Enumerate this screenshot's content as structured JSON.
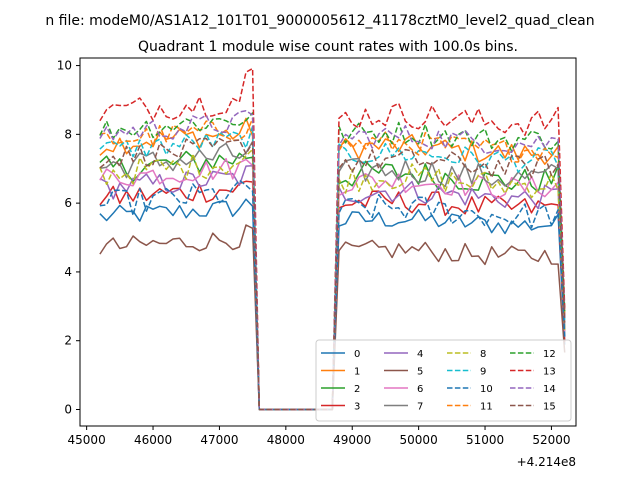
{
  "suptitle": "n file: modeM0/AS1A12_101T01_9000005612_41178cztM0_level2_quad_clean",
  "chart_data": {
    "type": "line",
    "title": "Quadrant 1 module wise count rates with 100.0s bins.",
    "xlabel": "",
    "ylabel": "",
    "offset_text": "+4.214e8",
    "xlim": [
      44900,
      52370
    ],
    "ylim": [
      -0.48,
      10.22
    ],
    "xticks": [
      45000,
      46000,
      47000,
      48000,
      49000,
      50000,
      51000,
      52000
    ],
    "xtick_labels": [
      "45000",
      "46000",
      "47000",
      "48000",
      "49000",
      "50000",
      "51000",
      "52000"
    ],
    "yticks": [
      0,
      2,
      4,
      6,
      8,
      10
    ],
    "ytick_labels": [
      "0",
      "2",
      "4",
      "6",
      "8",
      "10"
    ],
    "legend_position": "lower-right",
    "series": [
      {
        "name": "0",
        "color": "#1f77b4",
        "dash": "solid",
        "base": 5.45,
        "amp": 0.3
      },
      {
        "name": "1",
        "color": "#ff7f0e",
        "dash": "solid",
        "base": 7.55,
        "amp": 0.35
      },
      {
        "name": "2",
        "color": "#2ca02c",
        "dash": "solid",
        "base": 6.75,
        "amp": 0.4
      },
      {
        "name": "3",
        "color": "#d62728",
        "dash": "solid",
        "base": 5.95,
        "amp": 0.35
      },
      {
        "name": "4",
        "color": "#9467bd",
        "dash": "solid",
        "base": 6.25,
        "amp": 0.35
      },
      {
        "name": "5",
        "color": "#8c564b",
        "dash": "solid",
        "base": 4.55,
        "amp": 0.3
      },
      {
        "name": "6",
        "color": "#e377c2",
        "dash": "solid",
        "base": 6.55,
        "amp": 0.35
      },
      {
        "name": "7",
        "color": "#7f7f7f",
        "dash": "solid",
        "base": 6.85,
        "amp": 0.4
      },
      {
        "name": "8",
        "color": "#bcbd22",
        "dash": "dashed",
        "base": 6.65,
        "amp": 0.4
      },
      {
        "name": "9",
        "color": "#17becf",
        "dash": "dashed",
        "base": 7.35,
        "amp": 0.35
      },
      {
        "name": "10",
        "color": "#1f77b4",
        "dash": "dashed",
        "base": 5.75,
        "amp": 0.4
      },
      {
        "name": "11",
        "color": "#ff7f0e",
        "dash": "dashed",
        "base": 7.65,
        "amp": 0.35
      },
      {
        "name": "12",
        "color": "#2ca02c",
        "dash": "dashed",
        "base": 7.95,
        "amp": 0.35
      },
      {
        "name": "13",
        "color": "#d62728",
        "dash": "dashed",
        "base": 8.45,
        "amp": 0.4
      },
      {
        "name": "14",
        "color": "#9467bd",
        "dash": "dashed",
        "base": 7.85,
        "amp": 0.35
      },
      {
        "name": "15",
        "color": "#8c564b",
        "dash": "dashed",
        "base": 7.15,
        "amp": 0.35
      }
    ],
    "time_range": [
      45200,
      52200
    ],
    "bin_width": 100,
    "gap_range": [
      47600,
      48700
    ]
  }
}
